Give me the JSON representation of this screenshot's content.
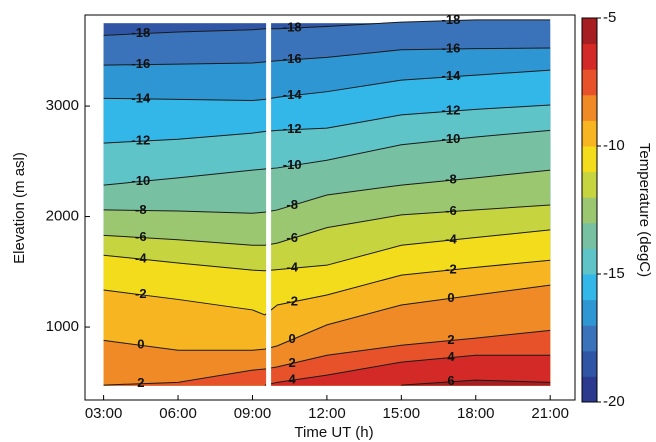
{
  "chart_data": {
    "type": "contour",
    "x_label": "Time UT (h)",
    "y_label": "Elevation (m asl)",
    "colorbar_label": "Temperature (degC)",
    "xlim": [
      2.25,
      22.0
    ],
    "ylim": [
      340,
      3824
    ],
    "xticks": [
      {
        "value": 3,
        "label": "03:00"
      },
      {
        "value": 6,
        "label": "06:00"
      },
      {
        "value": 9,
        "label": "09:00"
      },
      {
        "value": 12,
        "label": "12:00"
      },
      {
        "value": 15,
        "label": "15:00"
      },
      {
        "value": 18,
        "label": "18:00"
      },
      {
        "value": 21,
        "label": "21:00"
      }
    ],
    "yticks": [
      1000,
      2000,
      3000
    ],
    "data_ylim": [
      470,
      3750
    ],
    "gap_x": [
      9.55,
      9.75
    ],
    "clim": [
      -20,
      -5
    ],
    "cticks": [
      -20,
      -15,
      -10,
      -5
    ],
    "colormap": [
      "#2b3a8f",
      "#2f55a4",
      "#3a73b9",
      "#2f96d4",
      "#32b7e8",
      "#5fc4c8",
      "#77c1a2",
      "#9ac76f",
      "#c6d43f",
      "#f2dc1c",
      "#f7b521",
      "#f08a26",
      "#e8522b",
      "#d42a27",
      "#a61e22"
    ],
    "x": [
      3,
      6,
      9,
      9.5,
      10,
      12,
      15,
      18,
      21
    ],
    "contours": [
      {
        "level": -18,
        "elevations": [
          3640,
          3670,
          3690,
          3700,
          3700,
          3720,
          3760,
          3780,
          3780
        ]
      },
      {
        "level": -16,
        "elevations": [
          3370,
          3380,
          3390,
          3400,
          3410,
          3440,
          3510,
          3520,
          3525
        ]
      },
      {
        "level": -14,
        "elevations": [
          3070,
          3060,
          3050,
          3060,
          3080,
          3130,
          3235,
          3280,
          3325
        ]
      },
      {
        "level": -12,
        "elevations": [
          2665,
          2700,
          2755,
          2770,
          2780,
          2800,
          2920,
          2970,
          3010
        ]
      },
      {
        "level": -10,
        "elevations": [
          2285,
          2350,
          2420,
          2430,
          2440,
          2510,
          2650,
          2720,
          2780
        ]
      },
      {
        "level": -8,
        "elevations": [
          2060,
          2050,
          2030,
          2040,
          2060,
          2195,
          2285,
          2350,
          2420
        ]
      },
      {
        "level": -6,
        "elevations": [
          1830,
          1790,
          1740,
          1740,
          1760,
          1900,
          2015,
          2060,
          2105
        ]
      },
      {
        "level": -4,
        "elevations": [
          1650,
          1580,
          1515,
          1510,
          1520,
          1560,
          1740,
          1810,
          1880
        ]
      },
      {
        "level": -2,
        "elevations": [
          1335,
          1250,
          1155,
          1110,
          1200,
          1290,
          1470,
          1540,
          1605
        ]
      },
      {
        "level": 0,
        "elevations": [
          880,
          790,
          790,
          800,
          830,
          1020,
          1200,
          1290,
          1380
        ]
      },
      {
        "level": 2,
        "elevations": [
          475,
          500,
          610,
          620,
          640,
          745,
          835,
          900,
          970
        ]
      },
      {
        "level": 4,
        "elevations": [
          null,
          null,
          null,
          475,
          500,
          565,
          683,
          745,
          745
        ]
      },
      {
        "level": 6,
        "elevations": [
          null,
          null,
          null,
          null,
          null,
          null,
          475,
          520,
          500
        ]
      }
    ]
  }
}
